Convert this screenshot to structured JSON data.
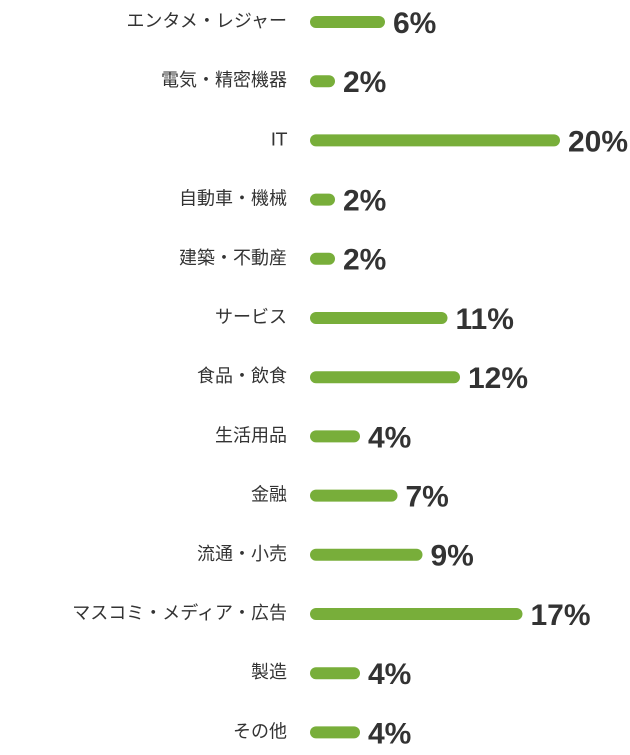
{
  "chart_data": {
    "type": "bar",
    "orientation": "horizontal",
    "color": "#78ae3a",
    "categories": [
      "エンタメ・レジャー",
      "電気・精密機器",
      "IT",
      "自動車・機械",
      "建築・不動産",
      "サービス",
      "食品・飲食",
      "生活用品",
      "金融",
      "流通・小売",
      "マスコミ・メディア・広告",
      "製造",
      "その他"
    ],
    "values": [
      6,
      2,
      20,
      2,
      2,
      11,
      12,
      4,
      7,
      9,
      17,
      4,
      4
    ],
    "value_labels": [
      "6%",
      "2%",
      "20%",
      "2%",
      "2%",
      "11%",
      "12%",
      "4%",
      "7%",
      "9%",
      "17%",
      "4%",
      "4%"
    ]
  }
}
